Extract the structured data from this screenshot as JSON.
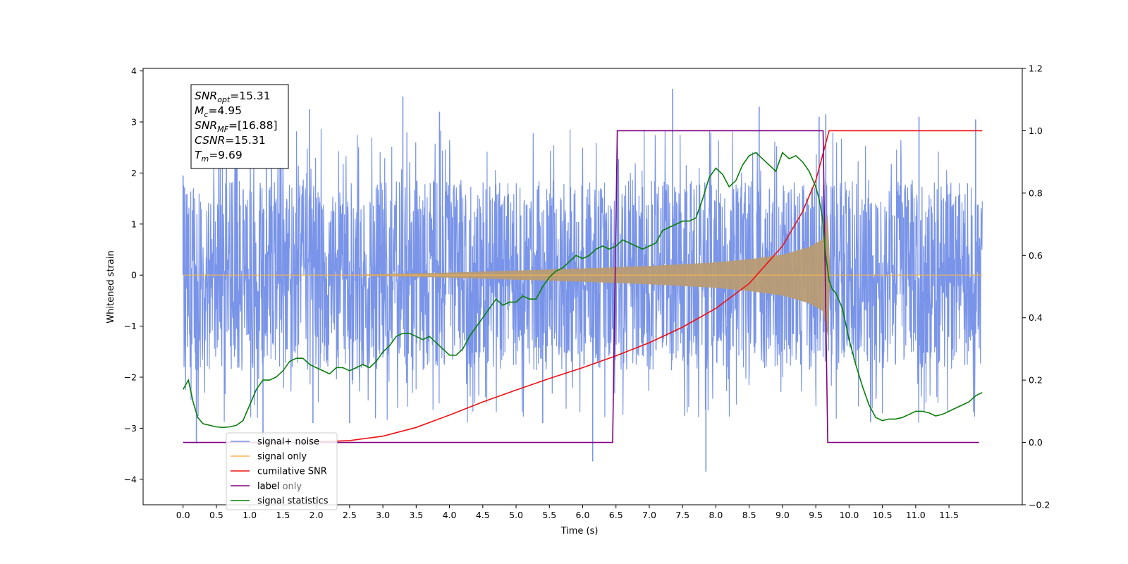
{
  "chart_data": {
    "type": "line",
    "title": "",
    "xlabel": "Time (s)",
    "ylabel": "Whitened strain",
    "ylabel_right": "",
    "xlim": [
      -0.6,
      12.6
    ],
    "ylim": [
      -4.5,
      4.05
    ],
    "ylim_right": [
      -0.2,
      1.2
    ],
    "x_ticks": [
      "0.0",
      "0.5",
      "1.0",
      "1.5",
      "2.0",
      "2.5",
      "3.0",
      "3.5",
      "4.0",
      "4.5",
      "5.0",
      "5.5",
      "6.0",
      "6.5",
      "7.0",
      "7.5",
      "8.0",
      "8.5",
      "9.0",
      "9.5",
      "10.0",
      "10.5",
      "11.0",
      "11.5"
    ],
    "y_ticks_left": [
      "4",
      "3",
      "2",
      "1",
      "0",
      "−1",
      "−2",
      "−3",
      "−4"
    ],
    "y_ticks_right": [
      "1.2",
      "1.0",
      "0.8",
      "0.6",
      "0.4",
      "0.2",
      "0.0",
      "−0.2"
    ],
    "grid": false,
    "legend_position": "lower-left",
    "colors": {
      "noise": "#7994e8",
      "signal": "#f5b651",
      "overlap": "#b89b74",
      "csnr": "#ee1111",
      "label": "#800080",
      "stats": "#0a7d0a"
    },
    "annotation": {
      "lines": [
        {
          "base": "SNR",
          "sub": "opt",
          "value": "=15.31"
        },
        {
          "base": "M",
          "sub": "c",
          "value": "=4.95"
        },
        {
          "base": "SNR",
          "sub": "MF",
          "value": "=[16.88]"
        },
        {
          "base": "CSNR",
          "sub": "",
          "value": "=15.31"
        },
        {
          "base": "T",
          "sub": "m",
          "value": "=9.69"
        }
      ]
    },
    "noise_series": {
      "name": "signal+ noise",
      "t_start": 0.0,
      "t_end": 12.0,
      "band_low": -1.7,
      "band_high": 1.7,
      "spikes": [
        {
          "x": 0.0,
          "y": 1.95
        },
        {
          "x": 0.2,
          "y": -3.3
        },
        {
          "x": 0.65,
          "y": 2.4
        },
        {
          "x": 1.25,
          "y": 2.8
        },
        {
          "x": 1.2,
          "y": -3.3
        },
        {
          "x": 1.9,
          "y": 3.25
        },
        {
          "x": 1.95,
          "y": -2.9
        },
        {
          "x": 2.5,
          "y": -2.9
        },
        {
          "x": 3.3,
          "y": 3.5
        },
        {
          "x": 3.85,
          "y": 3.2
        },
        {
          "x": 5.4,
          "y": -2.9
        },
        {
          "x": 6.15,
          "y": -3.65
        },
        {
          "x": 7.35,
          "y": 3.65
        },
        {
          "x": 7.85,
          "y": -3.85
        },
        {
          "x": 8.65,
          "y": 3.3
        },
        {
          "x": 9.55,
          "y": 3.1
        },
        {
          "x": 9.65,
          "y": 3.15
        },
        {
          "x": 11.05,
          "y": 3.1
        },
        {
          "x": 11.9,
          "y": 3.05
        }
      ]
    },
    "signal_envelope": {
      "name": "signal only",
      "points": [
        [
          0.0,
          0.0
        ],
        [
          2.5,
          0.005
        ],
        [
          3.0,
          0.02
        ],
        [
          4.0,
          0.05
        ],
        [
          5.0,
          0.09
        ],
        [
          6.0,
          0.13
        ],
        [
          7.0,
          0.18
        ],
        [
          8.0,
          0.25
        ],
        [
          8.5,
          0.31
        ],
        [
          9.0,
          0.4
        ],
        [
          9.4,
          0.55
        ],
        [
          9.6,
          0.7
        ],
        [
          9.68,
          1.2
        ],
        [
          9.72,
          0.0
        ],
        [
          12.0,
          0.0
        ]
      ]
    },
    "series": [
      {
        "name": "cumilative SNR",
        "axis": "right",
        "x": [
          1.8,
          2.5,
          3.0,
          3.5,
          4.0,
          4.5,
          5.0,
          5.5,
          6.0,
          6.5,
          7.0,
          7.5,
          8.0,
          8.5,
          9.0,
          9.3,
          9.5,
          9.6,
          9.7,
          10.0,
          12.0
        ],
        "y": [
          0.0,
          0.006,
          0.02,
          0.048,
          0.088,
          0.13,
          0.168,
          0.205,
          0.24,
          0.278,
          0.32,
          0.37,
          0.43,
          0.51,
          0.63,
          0.74,
          0.84,
          0.92,
          1.0,
          1.0,
          1.0
        ]
      },
      {
        "name": "label",
        "axis": "right",
        "x": [
          0.0,
          6.45,
          6.52,
          9.61,
          9.68,
          11.95
        ],
        "y": [
          0.0,
          0.0,
          1.0,
          1.0,
          0.0,
          0.0
        ]
      },
      {
        "name": "signal statistics",
        "axis": "right",
        "x": [
          0.0,
          0.08,
          0.15,
          0.22,
          0.3,
          0.5,
          0.6,
          0.7,
          0.8,
          0.9,
          1.0,
          1.1,
          1.2,
          1.3,
          1.4,
          1.5,
          1.6,
          1.7,
          1.8,
          1.9,
          2.0,
          2.1,
          2.2,
          2.3,
          2.4,
          2.5,
          2.6,
          2.7,
          2.8,
          2.9,
          3.0,
          3.1,
          3.2,
          3.3,
          3.4,
          3.5,
          3.6,
          3.7,
          3.8,
          3.9,
          4.0,
          4.1,
          4.2,
          4.3,
          4.4,
          4.5,
          4.6,
          4.7,
          4.8,
          4.9,
          5.0,
          5.1,
          5.2,
          5.3,
          5.4,
          5.5,
          5.6,
          5.7,
          5.8,
          5.9,
          6.0,
          6.1,
          6.2,
          6.3,
          6.4,
          6.5,
          6.6,
          6.7,
          6.8,
          6.9,
          7.0,
          7.1,
          7.2,
          7.3,
          7.4,
          7.5,
          7.6,
          7.7,
          7.8,
          7.9,
          8.0,
          8.1,
          8.2,
          8.3,
          8.4,
          8.5,
          8.6,
          8.7,
          8.8,
          8.9,
          9.0,
          9.1,
          9.2,
          9.3,
          9.4,
          9.5,
          9.55,
          9.6,
          9.65,
          9.7,
          9.75,
          9.8,
          9.9,
          10.0,
          10.1,
          10.2,
          10.3,
          10.4,
          10.5,
          10.6,
          10.7,
          10.8,
          10.9,
          11.0,
          11.1,
          11.2,
          11.3,
          11.4,
          11.5,
          11.6,
          11.7,
          11.8,
          11.9,
          12.0
        ],
        "y": [
          0.17,
          0.2,
          0.13,
          0.08,
          0.06,
          0.05,
          0.048,
          0.05,
          0.055,
          0.07,
          0.12,
          0.17,
          0.2,
          0.2,
          0.21,
          0.23,
          0.26,
          0.27,
          0.27,
          0.25,
          0.24,
          0.23,
          0.22,
          0.24,
          0.24,
          0.23,
          0.24,
          0.25,
          0.24,
          0.26,
          0.29,
          0.31,
          0.34,
          0.35,
          0.35,
          0.34,
          0.33,
          0.34,
          0.32,
          0.3,
          0.28,
          0.28,
          0.3,
          0.34,
          0.37,
          0.4,
          0.43,
          0.46,
          0.44,
          0.45,
          0.45,
          0.47,
          0.46,
          0.46,
          0.5,
          0.53,
          0.55,
          0.56,
          0.58,
          0.6,
          0.59,
          0.6,
          0.62,
          0.63,
          0.62,
          0.63,
          0.65,
          0.64,
          0.63,
          0.62,
          0.63,
          0.64,
          0.68,
          0.69,
          0.7,
          0.71,
          0.71,
          0.72,
          0.78,
          0.85,
          0.88,
          0.86,
          0.82,
          0.84,
          0.89,
          0.92,
          0.93,
          0.91,
          0.89,
          0.87,
          0.93,
          0.91,
          0.92,
          0.9,
          0.87,
          0.82,
          0.78,
          0.72,
          0.6,
          0.52,
          0.49,
          0.48,
          0.43,
          0.33,
          0.25,
          0.18,
          0.12,
          0.08,
          0.07,
          0.075,
          0.075,
          0.08,
          0.09,
          0.1,
          0.1,
          0.095,
          0.085,
          0.09,
          0.1,
          0.11,
          0.12,
          0.13,
          0.15,
          0.16
        ]
      }
    ],
    "legend": [
      "signal+ noise",
      "signal only",
      "cumilative SNR",
      "label",
      "signal statistics"
    ],
    "legend_hidden_text": "label only"
  }
}
